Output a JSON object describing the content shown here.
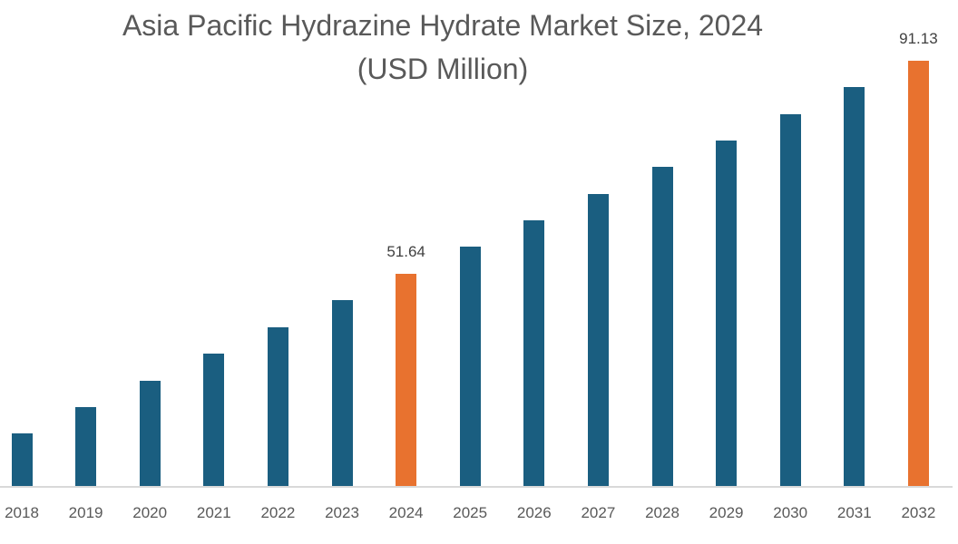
{
  "chart_data": {
    "type": "bar",
    "title": "Asia Pacific Hydrazine Hydrate Market Size, 2024",
    "subtitle": "(USD Million)",
    "xlabel": "",
    "ylabel": "",
    "grid": false,
    "legend": null,
    "categories": [
      "2018",
      "2019",
      "2020",
      "2021",
      "2022",
      "2023",
      "2024",
      "2025",
      "2026",
      "2027",
      "2028",
      "2029",
      "2030",
      "2031",
      "2032"
    ],
    "values": [
      22.0,
      26.9,
      31.8,
      36.8,
      41.7,
      46.7,
      51.64,
      56.6,
      61.5,
      66.5,
      71.4,
      76.3,
      81.2,
      86.2,
      91.13
    ],
    "highlighted": [
      "2024",
      "2032"
    ],
    "data_labels": {
      "2024": "51.64",
      "2032": "91.13"
    },
    "ylim": [
      12.3,
      91.13
    ],
    "colors": {
      "default": "#1a5e80",
      "highlight": "#e8722f"
    }
  },
  "title_line1": "Asia Pacific Hydrazine Hydrate Market Size, 2024",
  "title_line2": "(USD Million)"
}
